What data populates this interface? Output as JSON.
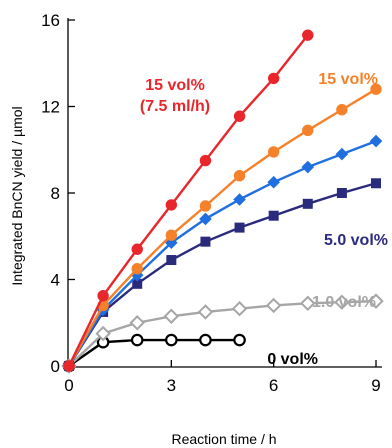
{
  "chart_data": {
    "type": "line",
    "xlabel": "Reaction time / h",
    "ylabel": "Integrated BnCN yield / µmol",
    "xlim": [
      0,
      9
    ],
    "ylim": [
      0,
      16
    ],
    "xticks": [
      0,
      3,
      6,
      9
    ],
    "yticks": [
      0,
      4,
      8,
      12,
      16
    ],
    "grid": false,
    "legend": "none",
    "series": [
      {
        "color": "#000000",
        "marker": "circle-open",
        "x": [
          0,
          1,
          2,
          3,
          4,
          5
        ],
        "y": [
          0,
          1.1,
          1.2,
          1.2,
          1.2,
          1.2
        ]
      },
      {
        "color": "#a6a6a6",
        "marker": "diamond-open",
        "x": [
          0,
          1,
          2,
          3,
          4,
          5,
          6,
          7,
          8,
          9
        ],
        "y": [
          0,
          1.5,
          2.0,
          2.3,
          2.5,
          2.65,
          2.8,
          2.9,
          2.95,
          3.0
        ]
      },
      {
        "color": "#2b2b7e",
        "marker": "square",
        "x": [
          0,
          1,
          2,
          3,
          4,
          5,
          6,
          7,
          8,
          9
        ],
        "y": [
          0,
          2.5,
          3.8,
          4.9,
          5.75,
          6.4,
          6.95,
          7.5,
          8.0,
          8.45
        ]
      },
      {
        "color": "#1f6fe0",
        "marker": "diamond",
        "x": [
          0,
          1,
          2,
          3,
          4,
          5,
          6,
          7,
          8,
          9
        ],
        "y": [
          0,
          2.6,
          4.2,
          5.7,
          6.8,
          7.7,
          8.5,
          9.2,
          9.8,
          10.4
        ]
      },
      {
        "color": "#f5812a",
        "marker": "circle",
        "x": [
          0,
          1,
          2,
          3,
          4,
          5,
          6,
          7,
          8,
          9
        ],
        "y": [
          0,
          2.8,
          4.5,
          6.05,
          7.4,
          8.8,
          9.9,
          10.9,
          11.85,
          12.8
        ]
      },
      {
        "color": "#e8262b",
        "marker": "circle",
        "x": [
          0,
          1,
          2,
          3,
          4,
          5,
          6,
          7
        ],
        "y": [
          0,
          3.25,
          5.4,
          7.45,
          9.5,
          11.55,
          13.3,
          15.3
        ]
      }
    ],
    "annotations": [
      {
        "text": "15 vol%",
        "color": "#e8262b"
      },
      {
        "text": "(7.5 ml/h)",
        "color": "#e8262b"
      },
      {
        "text": "15 vol%",
        "color": "#f5812a"
      },
      {
        "text": "5.0 vol%",
        "color": "#2b2b7e"
      },
      {
        "text": "1.0 vol%",
        "color": "#a6a6a6"
      },
      {
        "text": "0 vol%",
        "color": "#000000"
      }
    ]
  }
}
